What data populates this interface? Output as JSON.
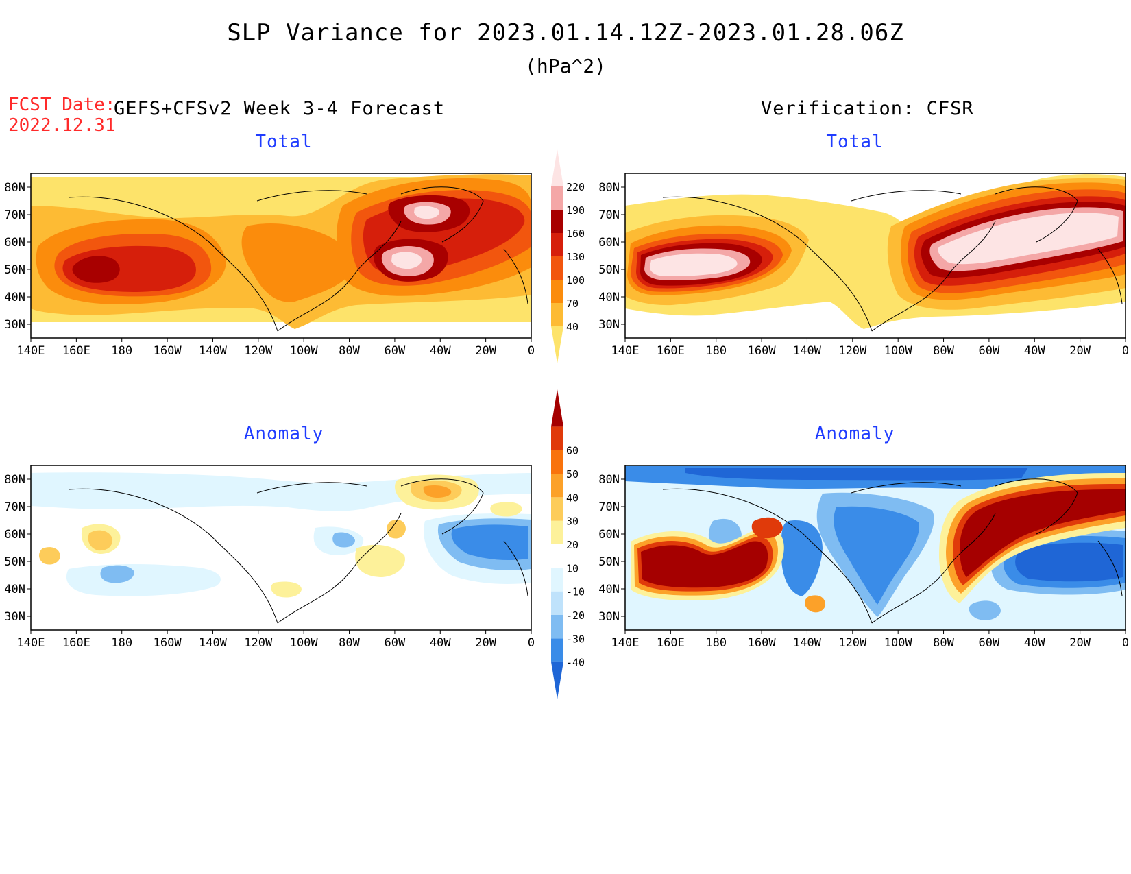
{
  "header": {
    "title": "SLP Variance for 2023.01.14.12Z-2023.01.28.06Z",
    "units": "(hPa^2)",
    "fcst_label": "FCST Date:",
    "fcst_date": "2022.12.31",
    "left_heading": "GEFS+CFSv2 Week 3-4 Forecast",
    "right_heading": "Verification: CFSR"
  },
  "panels": [
    {
      "id": "fcst-total",
      "title": "Total"
    },
    {
      "id": "verif-total",
      "title": "Total"
    },
    {
      "id": "fcst-anomaly",
      "title": "Anomaly"
    },
    {
      "id": "verif-anomaly",
      "title": "Anomaly"
    }
  ],
  "map_axes": {
    "lon_labels": [
      "140E",
      "160E",
      "180",
      "160W",
      "140W",
      "120W",
      "100W",
      "80W",
      "60W",
      "40W",
      "20W",
      "0"
    ],
    "lat_labels": [
      "80N",
      "70N",
      "60N",
      "50N",
      "40N",
      "30N"
    ]
  },
  "colorbars": {
    "total": {
      "levels": [
        "40",
        "70",
        "100",
        "130",
        "160",
        "190",
        "220"
      ],
      "colors": [
        "#fde36a",
        "#fdbb34",
        "#fb8c0c",
        "#f2560e",
        "#d61f0b",
        "#a80000",
        "#f4a7a7",
        "#fde4e4"
      ]
    },
    "anomaly": {
      "levels": [
        "-40",
        "-30",
        "-20",
        "-10",
        "10",
        "20",
        "30",
        "40",
        "50",
        "60"
      ],
      "colors": [
        "#1f66d6",
        "#3a8ce8",
        "#7fbcf2",
        "#bfe2fb",
        "#e0f6ff",
        "#ffffff",
        "#fdf19a",
        "#fdcc5a",
        "#fca129",
        "#f9730c",
        "#e03a0a",
        "#a50000"
      ]
    }
  },
  "colors": {
    "red_text": "#ff2a2a",
    "panel_title_blue": "#1f3cff"
  }
}
